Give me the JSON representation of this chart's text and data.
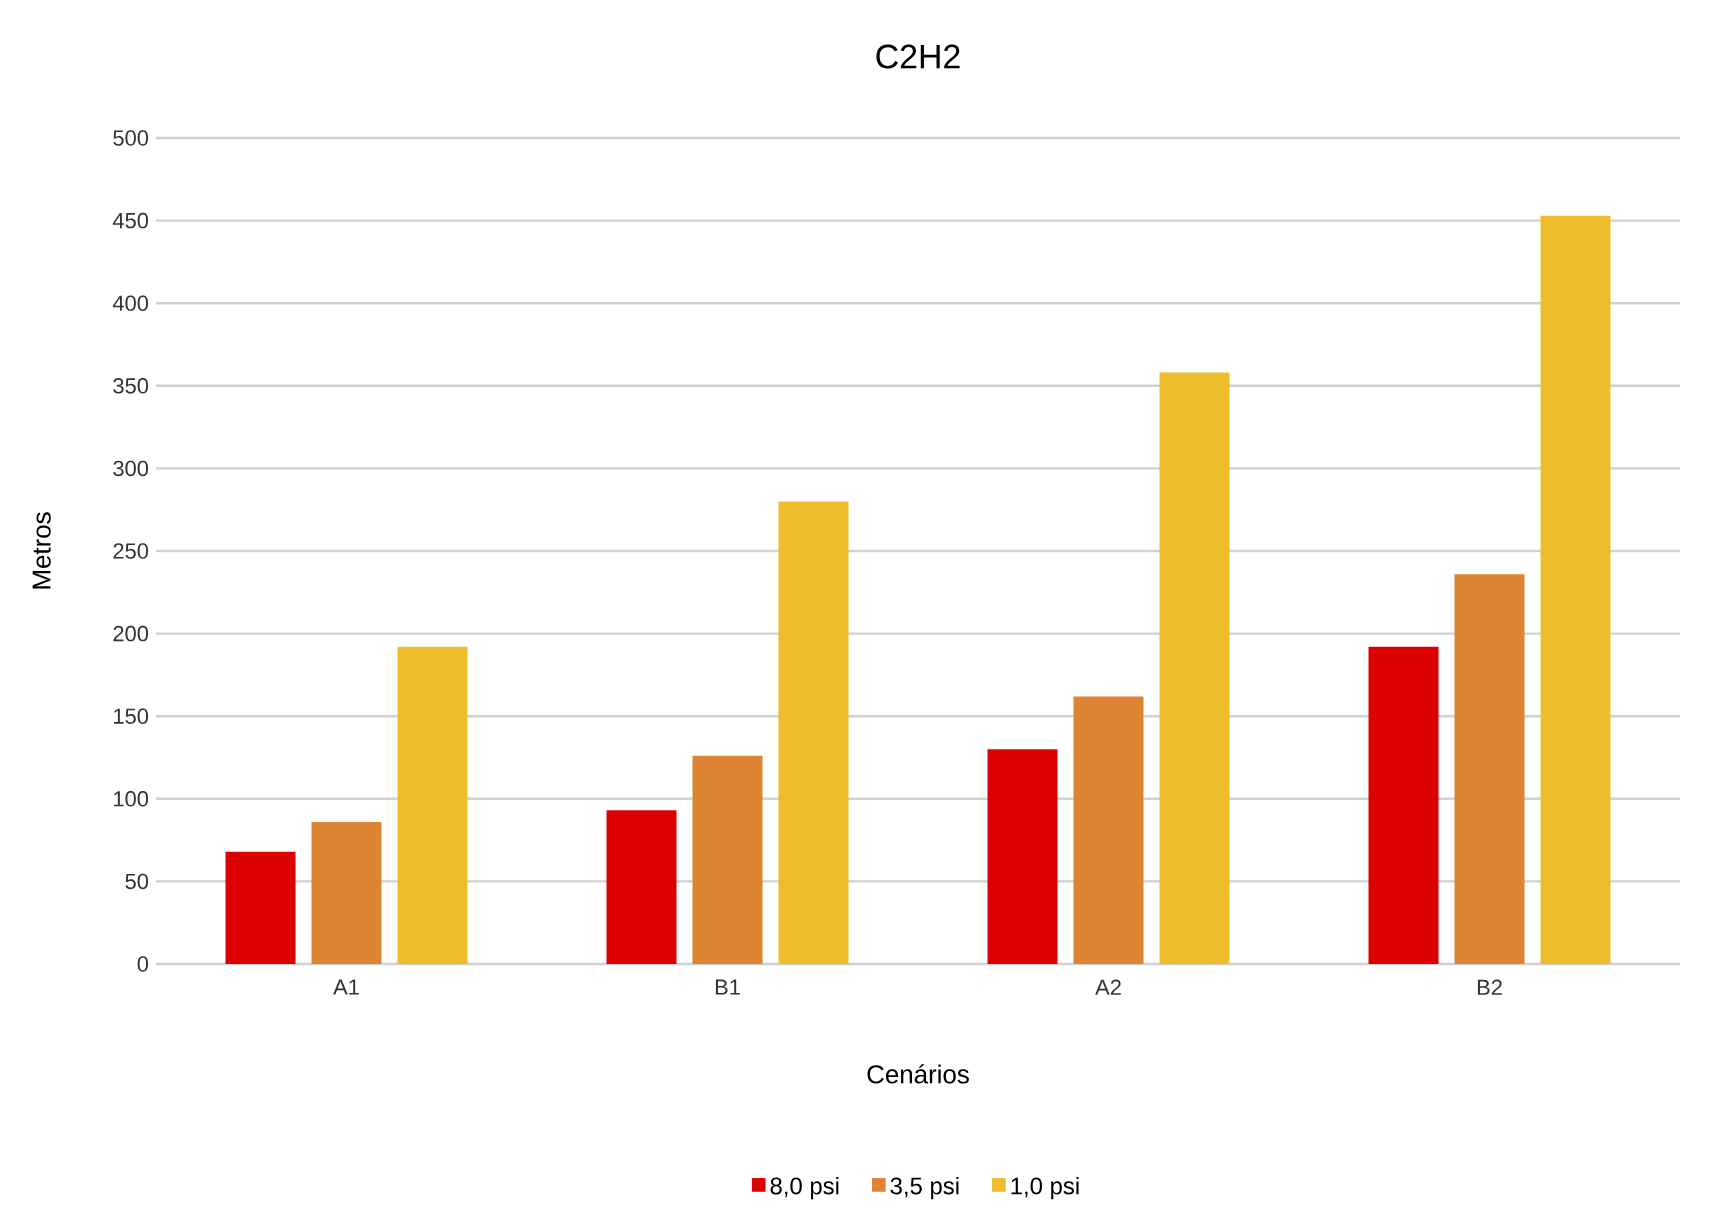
{
  "chart_data": {
    "type": "bar",
    "title": "C2H2",
    "xlabel": "Cenários",
    "ylabel": "Metros",
    "categories": [
      "A1",
      "B1",
      "A2",
      "B2"
    ],
    "series": [
      {
        "name": "8,0 psi",
        "color": "#dc0000",
        "values": [
          68,
          93,
          130,
          192
        ]
      },
      {
        "name": "3,5 psi",
        "color": "#dd8433",
        "values": [
          86,
          126,
          162,
          236
        ]
      },
      {
        "name": "1,0 psi",
        "color": "#eebd2c",
        "values": [
          192,
          280,
          358,
          453
        ]
      }
    ],
    "ylim": [
      0,
      500
    ],
    "yticks": [
      0,
      50,
      100,
      150,
      200,
      250,
      300,
      350,
      400,
      450,
      500
    ],
    "grid": "y",
    "legend": "bottom"
  }
}
